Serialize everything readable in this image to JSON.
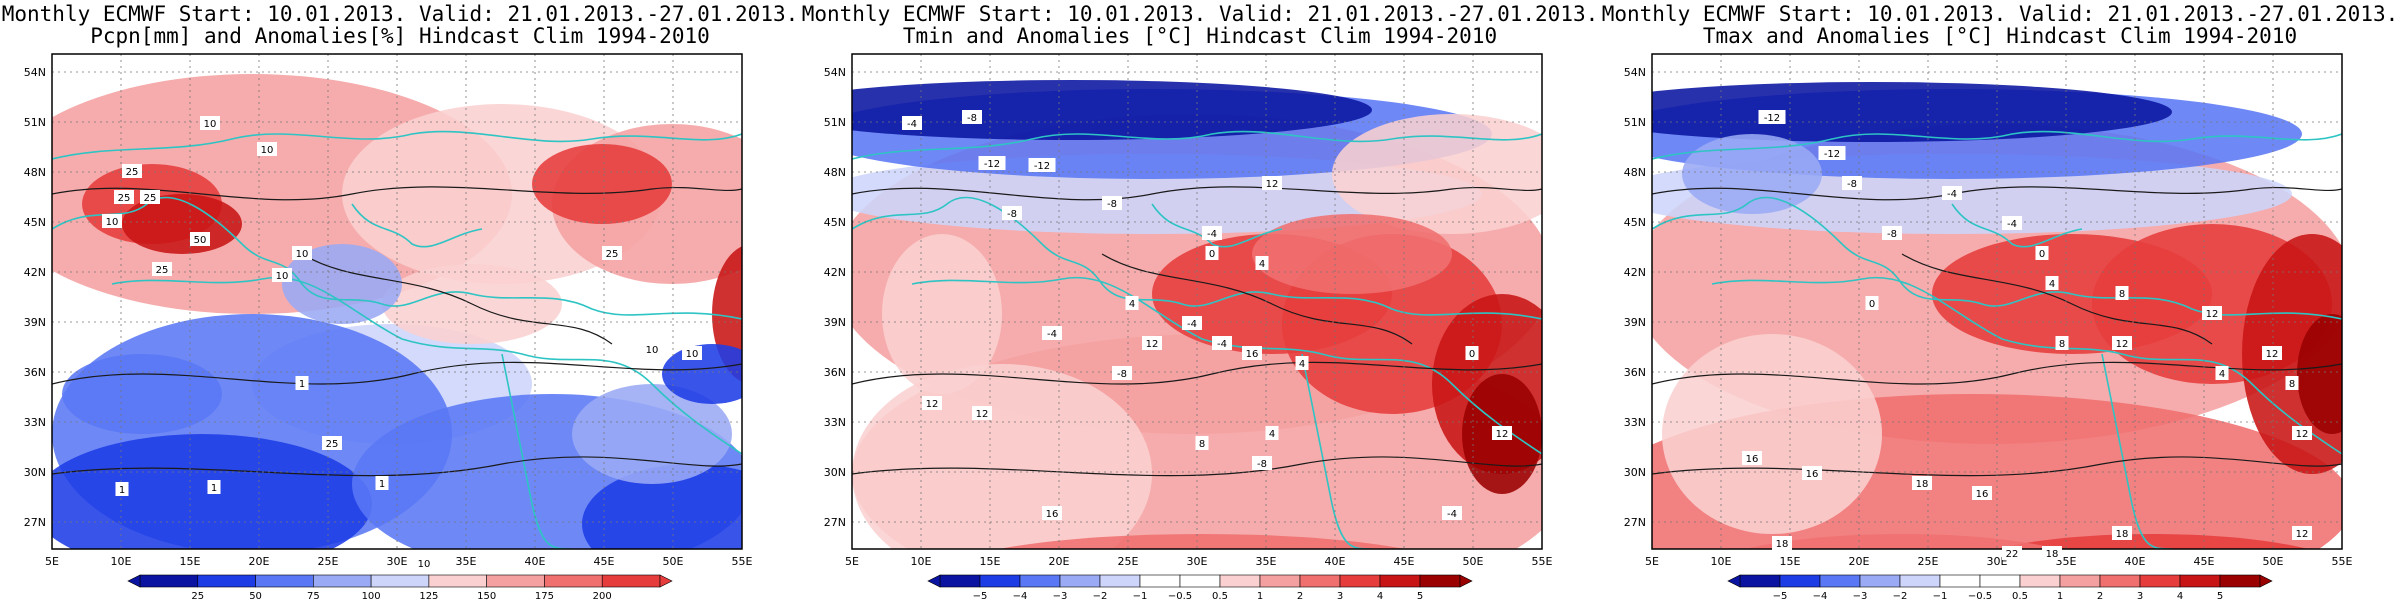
{
  "colors": {
    "coast": "#2ec4c4",
    "contour": "#1a1a1a",
    "neg": [
      "#0a14a0",
      "#1e3ce6",
      "#5a78f5",
      "#9aaaf5",
      "#cdd5fa"
    ],
    "pos": [
      "#fbd0d0",
      "#f5a0a0",
      "#f07070",
      "#e63c3c",
      "#c81414",
      "#9a0000"
    ]
  },
  "panels": [
    {
      "title1": "Monthly ECMWF Start: 10.01.2013. Valid: 21.01.2013.-27.01.2013.",
      "title2": "Pcpn[mm] and Anomalies[%] Hindcast Clim 1994-2010",
      "colorbar_labels": [
        "25",
        "50",
        "75",
        "100",
        "125",
        "150",
        "175",
        "200"
      ],
      "contour_labels": [
        "10",
        "10",
        "25",
        "25",
        "25",
        "50",
        "25",
        "10",
        "10",
        "10",
        "1",
        "1",
        "1",
        "1",
        "10",
        "25",
        "10",
        "10",
        "25"
      ]
    },
    {
      "title1": "Monthly ECMWF Start: 10.01.2013. Valid: 21.01.2013.-27.01.2013.",
      "title2": "Tmin and Anomalies [°C] Hindcast Clim 1994-2010",
      "colorbar_labels": [
        "−5",
        "−4",
        "−3",
        "−2",
        "−1",
        "−0.5",
        "0.5",
        "1",
        "2",
        "3",
        "4",
        "5"
      ],
      "contour_labels": [
        "-4",
        "-8",
        "-12",
        "-12",
        "-8",
        "-8",
        "-4",
        "0",
        "4",
        "-4",
        "-8",
        "-4",
        "-4",
        "12",
        "12",
        "12",
        "16",
        "8",
        "4",
        "-8",
        "4",
        "0",
        "12",
        "4",
        "-4",
        "12",
        "16"
      ]
    },
    {
      "title1": "Monthly ECMWF Start: 10.01.2013. Valid: 21.01.2013.-27.01.2013.",
      "title2": "Tmax and Anomalies [°C] Hindcast Clim 1994-2010",
      "colorbar_labels": [
        "−5",
        "−4",
        "−3",
        "−2",
        "−1",
        "−0.5",
        "0.5",
        "1",
        "2",
        "3",
        "4",
        "5"
      ],
      "contour_labels": [
        "-12",
        "-12",
        "-8",
        "-4",
        "-8",
        "-4",
        "0",
        "0",
        "4",
        "8",
        "12",
        "8",
        "12",
        "12",
        "8",
        "12",
        "16",
        "16",
        "18",
        "18",
        "16",
        "22",
        "18",
        "18",
        "12",
        "4"
      ]
    }
  ],
  "axes": {
    "lat_labels": [
      "54N",
      "51N",
      "48N",
      "45N",
      "42N",
      "39N",
      "36N",
      "33N",
      "30N",
      "27N"
    ],
    "lon_labels": [
      "5E",
      "10E",
      "15E",
      "20E",
      "25E",
      "30E",
      "35E",
      "40E",
      "45E",
      "50E",
      "55E"
    ]
  }
}
